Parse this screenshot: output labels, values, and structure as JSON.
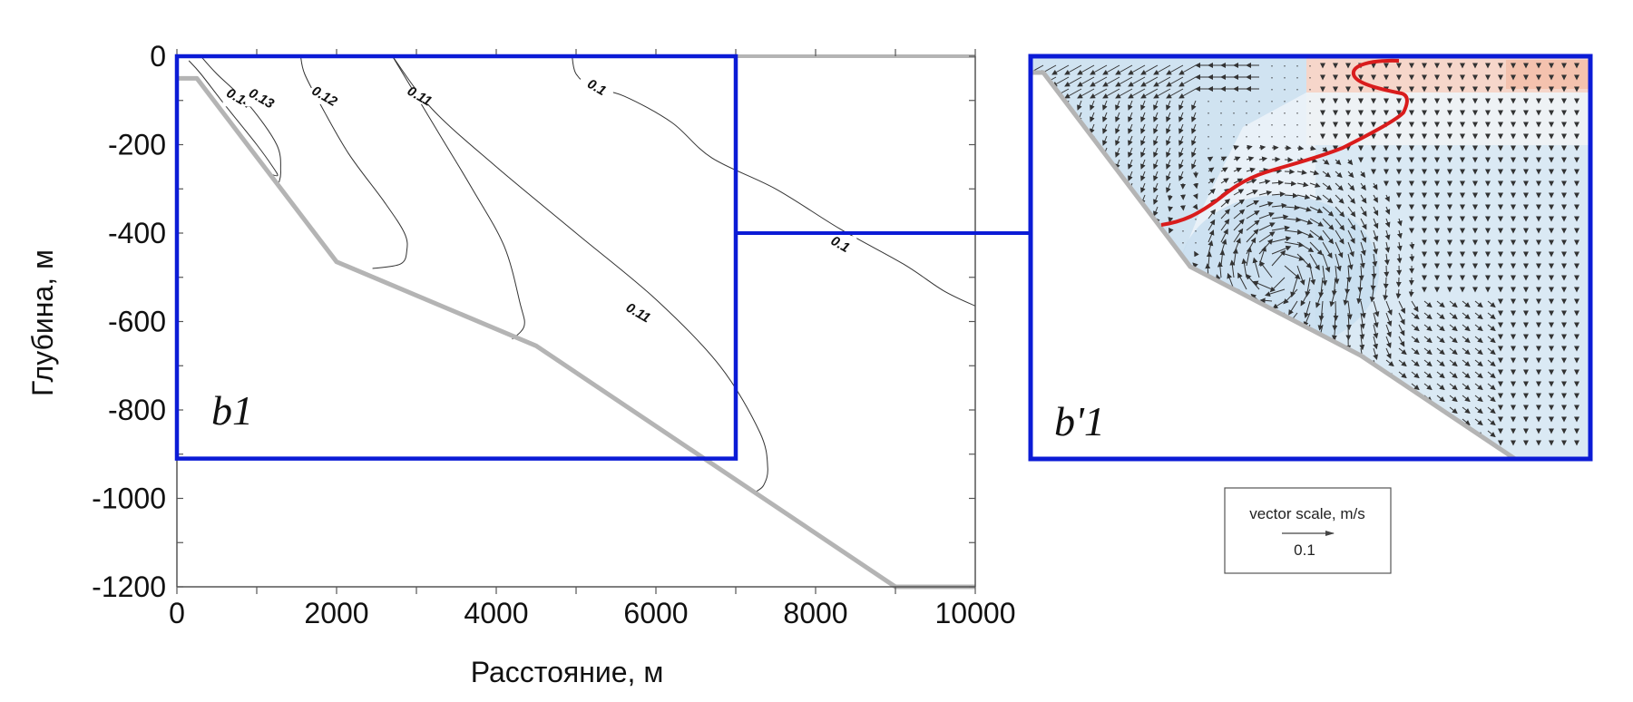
{
  "chart_data": [
    {
      "type": "contour",
      "panel_label": "b1",
      "xlabel": "Расстояние, м",
      "ylabel": "Глубина, м",
      "xlim": [
        0,
        10000
      ],
      "ylim": [
        -1200,
        0
      ],
      "x_ticks": [
        0,
        2000,
        4000,
        6000,
        8000,
        10000
      ],
      "y_ticks": [
        0,
        -200,
        -400,
        -600,
        -800,
        -1000,
        -1200
      ],
      "x_tick_labels": [
        "0",
        "2000",
        "4000",
        "6000",
        "8000",
        "10000"
      ],
      "y_tick_labels": [
        "0",
        "-200",
        "-400",
        "-600",
        "-800",
        "-1000",
        "-1200"
      ],
      "grid": false,
      "bottom_profile": {
        "x": [
          0,
          250,
          2000,
          4500,
          9000,
          10000
        ],
        "y": [
          -50,
          -50,
          -465,
          -655,
          -1200,
          -1200
        ]
      },
      "contours": [
        {
          "level": "0.14",
          "x": [
            150,
            300,
            600,
            1000,
            1200,
            1260,
            1150
          ],
          "y": [
            -10,
            -40,
            -110,
            -200,
            -250,
            -270,
            -265
          ]
        },
        {
          "level": "0.13",
          "x": [
            300,
            500,
            900,
            1250,
            1300,
            1280
          ],
          "y": [
            0,
            -40,
            -110,
            -200,
            -260,
            -285
          ]
        },
        {
          "level": "0.12",
          "x": [
            1550,
            1600,
            1800,
            2150,
            2600,
            2850,
            2880,
            2800,
            2450
          ],
          "y": [
            0,
            -40,
            -110,
            -220,
            -330,
            -400,
            -440,
            -470,
            -480
          ]
        },
        {
          "level": "0.11",
          "x": [
            2700,
            2900,
            3300,
            3700,
            4100,
            4300,
            4350,
            4200
          ],
          "y": [
            0,
            -60,
            -180,
            -300,
            -430,
            -560,
            -610,
            -640
          ]
        },
        {
          "level": "0.11",
          "x": [
            2700,
            3200,
            4000,
            5000,
            6000,
            6800,
            7300,
            7400,
            7350,
            7250
          ],
          "y": [
            0,
            -120,
            -250,
            -400,
            -550,
            -700,
            -850,
            -930,
            -970,
            -985
          ]
        },
        {
          "level": "0.1",
          "x": [
            4950,
            5000,
            5200,
            5600,
            6200,
            6700,
            7500,
            8300,
            9100,
            9600,
            10000
          ],
          "y": [
            0,
            -40,
            -70,
            -90,
            -150,
            -230,
            -300,
            -390,
            -470,
            -530,
            -565
          ]
        }
      ],
      "contour_labels": [
        {
          "text": "0.14",
          "x": 780,
          "y": -95
        },
        {
          "text": "0.13",
          "x": 1060,
          "y": -95
        },
        {
          "text": "0.12",
          "x": 1850,
          "y": -90
        },
        {
          "text": "0.11",
          "x": 3040,
          "y": -90
        },
        {
          "text": "0.1",
          "x": 5260,
          "y": -70
        },
        {
          "text": "0.1",
          "x": 8310,
          "y": -425
        },
        {
          "text": "0.11",
          "x": 5780,
          "y": -580
        }
      ],
      "inset_box": {
        "x": [
          0,
          7000
        ],
        "y": [
          -910,
          0
        ]
      }
    },
    {
      "type": "vector_field",
      "panel_label": "b'1",
      "legend": {
        "title": "vector scale, m/s",
        "reference_value": "0.1"
      },
      "colors": {
        "warm": "#f7cfc0",
        "cool": "#d2e6f4",
        "pale": "#eef3f7",
        "isoline": "#d91c1c",
        "frame": "#0b1bd6",
        "bottom": "#b4b4b4"
      }
    }
  ]
}
